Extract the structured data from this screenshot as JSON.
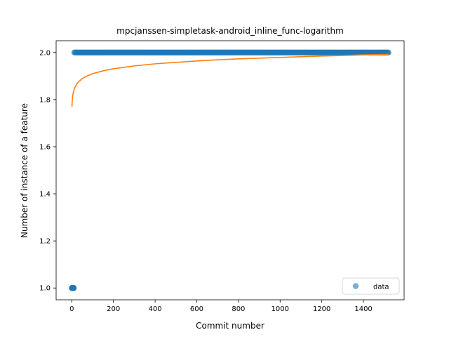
{
  "chart_data": {
    "type": "scatter",
    "title": "mpcjanssen-simpletask-android_inline_func-logarithm",
    "xlabel": "Commit number",
    "ylabel": "Number of instance of a feature",
    "xlim": [
      -75,
      1595
    ],
    "ylim": [
      0.95,
      2.05
    ],
    "xticks": [
      0,
      200,
      400,
      600,
      800,
      1000,
      1200,
      1400
    ],
    "yticks": [
      1.0,
      1.2,
      1.4,
      1.6,
      1.8,
      2.0
    ],
    "ytick_labels": [
      "1.0",
      "1.2",
      "1.4",
      "1.6",
      "1.8",
      "2.0"
    ],
    "legend_position": "lower-right",
    "series": [
      {
        "name": "data",
        "kind": "scatter",
        "color": "#1f77b4",
        "segments": [
          {
            "x_start": 0,
            "x_end": 10,
            "step": 1,
            "y": 1.0
          },
          {
            "x_start": 12,
            "x_end": 1520,
            "step": 4,
            "y": 2.0
          }
        ]
      },
      {
        "kind": "line",
        "color": "#ff7f0e",
        "x": [
          1,
          2,
          3,
          5,
          8,
          12,
          20,
          30,
          50,
          75,
          100,
          150,
          200,
          300,
          400,
          500,
          600,
          700,
          800,
          900,
          1000,
          1100,
          1200,
          1300,
          1400,
          1520
        ],
        "y": [
          1.77,
          1.791,
          1.803,
          1.819,
          1.833,
          1.845,
          1.861,
          1.873,
          1.889,
          1.901,
          1.91,
          1.922,
          1.931,
          1.943,
          1.952,
          1.958,
          1.964,
          1.969,
          1.973,
          1.976,
          1.979,
          1.982,
          1.985,
          1.987,
          1.99,
          1.992
        ]
      }
    ]
  }
}
